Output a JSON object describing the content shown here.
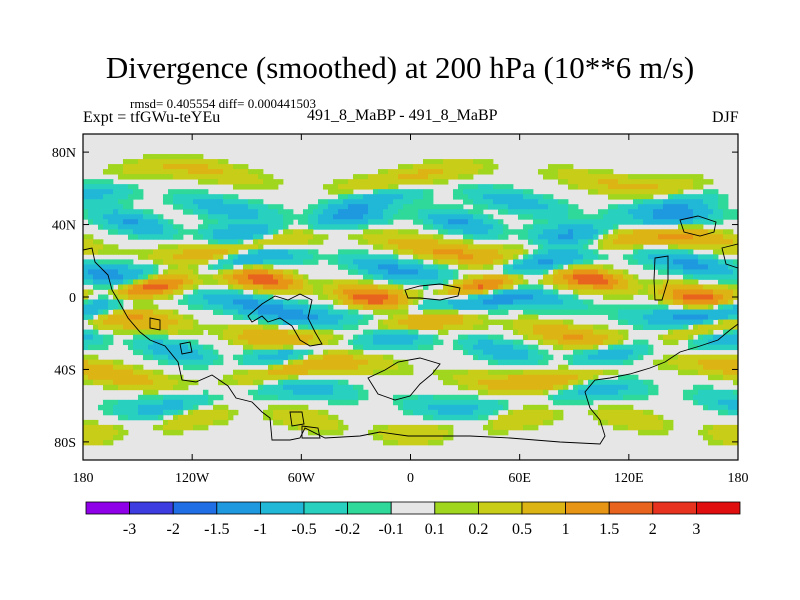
{
  "chart_data": {
    "type": "heatmap",
    "title": "Divergence (smoothed) at 200 hPa (10**6 m/s)",
    "stats_label": "rmsd= 0.405554 diff= 0.000441503",
    "experiment_label": "Expt = tfGWu-teYEu",
    "comparison_label": "491_8_MaBP - 491_8_MaBP",
    "season_label": "DJF",
    "x_axis": {
      "range": [
        -180,
        180
      ],
      "ticks": [
        {
          "value": -180,
          "label": "180"
        },
        {
          "value": -120,
          "label": "120W"
        },
        {
          "value": -60,
          "label": "60W"
        },
        {
          "value": 0,
          "label": "0"
        },
        {
          "value": 60,
          "label": "60E"
        },
        {
          "value": 120,
          "label": "120E"
        },
        {
          "value": 180,
          "label": "180"
        }
      ]
    },
    "y_axis": {
      "range": [
        -90,
        90
      ],
      "ticks": [
        {
          "value": 80,
          "label": "80N"
        },
        {
          "value": 40,
          "label": "40N"
        },
        {
          "value": 0,
          "label": "0"
        },
        {
          "value": -40,
          "label": "40S"
        },
        {
          "value": -80,
          "label": "80S"
        }
      ]
    },
    "colorbar": {
      "colors": [
        "#8f00e8",
        "#3c3ce0",
        "#1f6ee6",
        "#1e98de",
        "#21b8d8",
        "#28d0c0",
        "#2ed99a",
        "#e6e6e6",
        "#a0d61e",
        "#c8ce18",
        "#dcb414",
        "#e69614",
        "#e8641e",
        "#e6321e",
        "#e00e0e"
      ],
      "labels": [
        "-3",
        "-2",
        "-1.5",
        "-1",
        "-0.5",
        "-0.2",
        "-0.1",
        "0.1",
        "0.2",
        "0.5",
        "1",
        "1.5",
        "2",
        "3"
      ]
    },
    "field_bands": [
      {
        "lat": 66,
        "sign": 1,
        "amp": 0.6
      },
      {
        "lat": 52,
        "sign": -1,
        "amp": 0.8
      },
      {
        "lat": 40,
        "sign": -1,
        "amp": 1.1
      },
      {
        "lat": 28,
        "sign": 1,
        "amp": 1.1
      },
      {
        "lat": 18,
        "sign": -1,
        "amp": 1.2
      },
      {
        "lat": 5,
        "sign": 1,
        "amp": 1.9
      },
      {
        "lat": -6,
        "sign": -1,
        "amp": 1.4
      },
      {
        "lat": -18,
        "sign": 1,
        "amp": 1.1
      },
      {
        "lat": -28,
        "sign": -1,
        "amp": 0.9
      },
      {
        "lat": -42,
        "sign": 1,
        "amp": 0.9
      },
      {
        "lat": -56,
        "sign": -1,
        "amp": 0.7
      },
      {
        "lat": -70,
        "sign": 1,
        "amp": 0.5
      }
    ]
  }
}
